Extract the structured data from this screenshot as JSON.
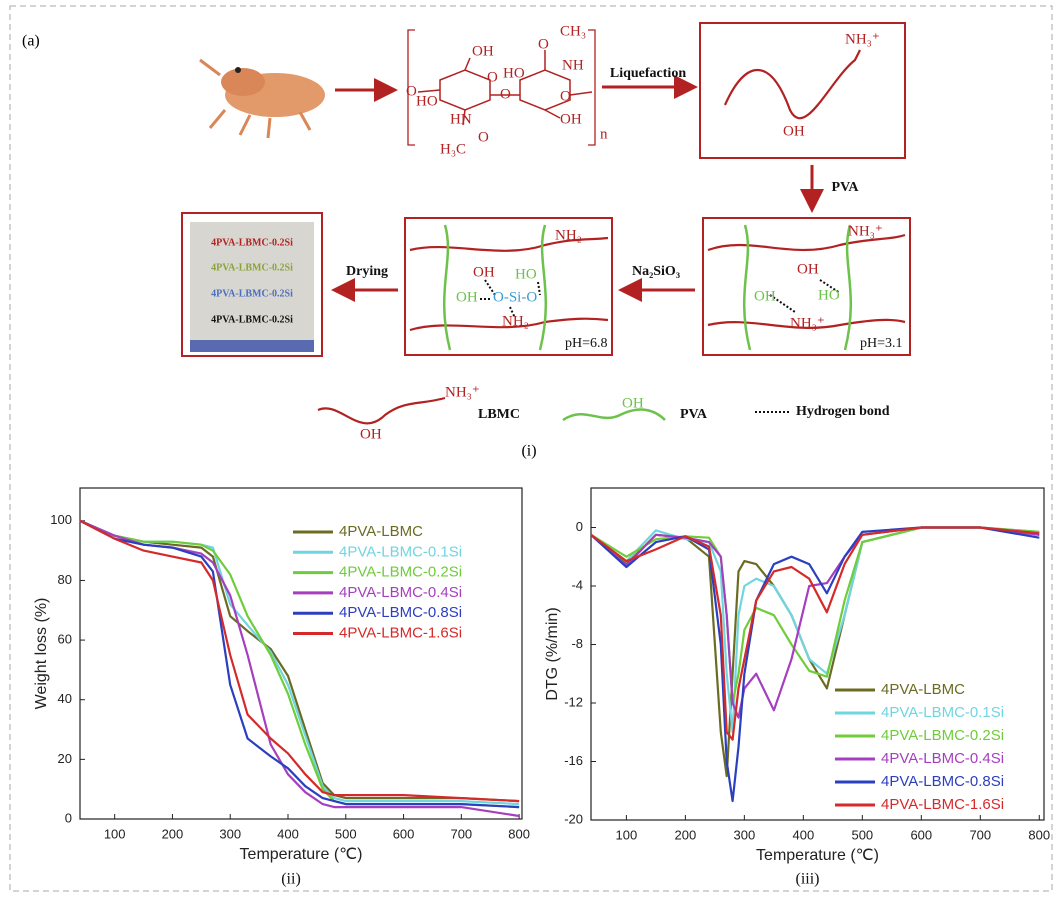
{
  "diagram": {
    "panel_label": "(a)",
    "steps": {
      "liquefaction": "Liquefaction",
      "pva": "PVA",
      "na2sio3": "Na₂SiO₃",
      "drying": "Drying"
    },
    "chitin": [
      "OH",
      "O",
      "O",
      "HO",
      "HN",
      "O",
      "H₃C",
      "O",
      "HO",
      "NH",
      "O",
      "O",
      "CH₃",
      "OH",
      "n"
    ],
    "lbmc_box": [
      "NH₃⁺",
      "OH"
    ],
    "box_ph31": [
      "NH₃⁺",
      "OH",
      "OH",
      "HO",
      "NH₃⁺",
      "pH=3.1"
    ],
    "box_ph68": [
      "NH₂",
      "OH",
      "HO",
      "OH",
      "O-Si-O",
      "NH₂",
      "pH=6.8"
    ],
    "sample": [
      "4PVA-LBMC-0.2Si",
      "4PVA-LBMC-0.2Si",
      "4PVA-LBMC-0.2Si",
      "4PVA-LBMC-0.2Si"
    ],
    "legend": [
      "NH₃⁺",
      "OH",
      "LBMC",
      "OH",
      "PVA",
      "Hydrogen bond"
    ],
    "caption": "(i)"
  },
  "chart_data": [
    {
      "type": "line",
      "caption": "(ii)",
      "xlabel": "Temperature (℃)",
      "ylabel": "Weight loss (%)",
      "xlim": [
        40,
        805
      ],
      "ylim": [
        0,
        111
      ],
      "xticks": [
        100,
        200,
        300,
        400,
        500,
        600,
        700,
        800
      ],
      "yticks": [
        0,
        20,
        40,
        60,
        80,
        100
      ],
      "legend": "upper right",
      "x": [
        40,
        100,
        150,
        200,
        250,
        270,
        300,
        330,
        370,
        400,
        430,
        460,
        480,
        500,
        600,
        700,
        800
      ],
      "series": [
        {
          "name": "4PVA-LBMC",
          "color": "#6b6b22",
          "values": [
            100,
            95,
            93,
            92,
            91,
            88,
            68,
            63,
            57,
            48,
            30,
            12,
            8,
            7,
            7,
            7,
            6
          ]
        },
        {
          "name": "4PVA-LBMC-0.1Si",
          "color": "#6fd6e0",
          "values": [
            100,
            95,
            93,
            93,
            92,
            91,
            72,
            65,
            56,
            45,
            28,
            11,
            7,
            6,
            6,
            6,
            5
          ]
        },
        {
          "name": "4PVA-LBMC-0.2Si",
          "color": "#6fcc3a",
          "values": [
            100,
            95,
            93,
            93,
            92,
            90,
            82,
            68,
            55,
            42,
            25,
            10,
            6,
            5,
            5,
            5,
            4
          ]
        },
        {
          "name": "4PVA-LBMC-0.4Si",
          "color": "#a63fbf",
          "values": [
            100,
            95,
            92,
            91,
            89,
            86,
            75,
            55,
            25,
            15,
            9,
            5,
            4,
            4,
            4,
            4,
            1
          ]
        },
        {
          "name": "4PVA-LBMC-0.8Si",
          "color": "#2b3fbf",
          "values": [
            100,
            94,
            92,
            91,
            88,
            83,
            45,
            27,
            21,
            17,
            11,
            7,
            6,
            5,
            5,
            5,
            4
          ]
        },
        {
          "name": "4PVA-LBMC-1.6Si",
          "color": "#d42a2a",
          "values": [
            100,
            94,
            90,
            88,
            86,
            80,
            55,
            35,
            27,
            22,
            15,
            9,
            8,
            8,
            8,
            7,
            6
          ]
        }
      ]
    },
    {
      "type": "line",
      "caption": "(iii)",
      "xlabel": "Temperature (℃)",
      "ylabel": "DTG (%/min)",
      "xlim": [
        40,
        808
      ],
      "ylim": [
        -20,
        2.7
      ],
      "xticks": [
        100,
        200,
        300,
        400,
        500,
        600,
        700,
        800
      ],
      "yticks": [
        0,
        -4,
        -8,
        -12,
        -16,
        -20
      ],
      "legend": "lower right",
      "x": [
        40,
        100,
        150,
        200,
        240,
        260,
        270,
        280,
        290,
        300,
        320,
        350,
        380,
        410,
        440,
        470,
        500,
        600,
        700,
        800
      ],
      "series": [
        {
          "name": "4PVA-LBMC",
          "color": "#6b6b22",
          "values": [
            -0.5,
            -2.5,
            -0.5,
            -0.7,
            -2,
            -14,
            -17,
            -10,
            -3,
            -2.3,
            -2.5,
            -4,
            -6,
            -9,
            -11,
            -6,
            -1,
            0,
            0,
            -0.5
          ]
        },
        {
          "name": "4PVA-LBMC-0.1Si",
          "color": "#6fd6e0",
          "values": [
            -0.5,
            -2.3,
            -0.2,
            -0.8,
            -1,
            -3,
            -10,
            -14,
            -6,
            -4,
            -3.5,
            -4,
            -6,
            -9,
            -10,
            -6,
            -1,
            0,
            0,
            -0.3
          ]
        },
        {
          "name": "4PVA-LBMC-0.2Si",
          "color": "#6fcc3a",
          "values": [
            -0.5,
            -2,
            -0.8,
            -0.6,
            -0.7,
            -2,
            -6,
            -12,
            -10,
            -7,
            -5.5,
            -6,
            -8,
            -9.8,
            -10.2,
            -5,
            -1,
            0,
            0,
            -0.3
          ]
        },
        {
          "name": "4PVA-LBMC-0.4Si",
          "color": "#a63fbf",
          "values": [
            -0.5,
            -2.6,
            -0.5,
            -0.7,
            -1,
            -2,
            -6,
            -12,
            -13,
            -11,
            -10,
            -12.5,
            -9,
            -4,
            -3.8,
            -2,
            -0.5,
            0,
            0,
            -0.5
          ]
        },
        {
          "name": "4PVA-LBMC-0.8Si",
          "color": "#2b3fbf",
          "values": [
            -0.5,
            -2.7,
            -1,
            -0.6,
            -1.5,
            -8,
            -16,
            -18.7,
            -15,
            -10,
            -5,
            -2.5,
            -2,
            -2.5,
            -4.5,
            -2,
            -0.3,
            0,
            0,
            -0.7
          ]
        },
        {
          "name": "4PVA-LBMC-1.6Si",
          "color": "#d42a2a",
          "values": [
            -0.5,
            -2.3,
            -1.5,
            -0.6,
            -1.3,
            -6,
            -14,
            -14.5,
            -11,
            -9,
            -5,
            -3,
            -2.7,
            -3.5,
            -5.8,
            -2.5,
            -0.5,
            0,
            0,
            -0.4
          ]
        }
      ]
    }
  ]
}
